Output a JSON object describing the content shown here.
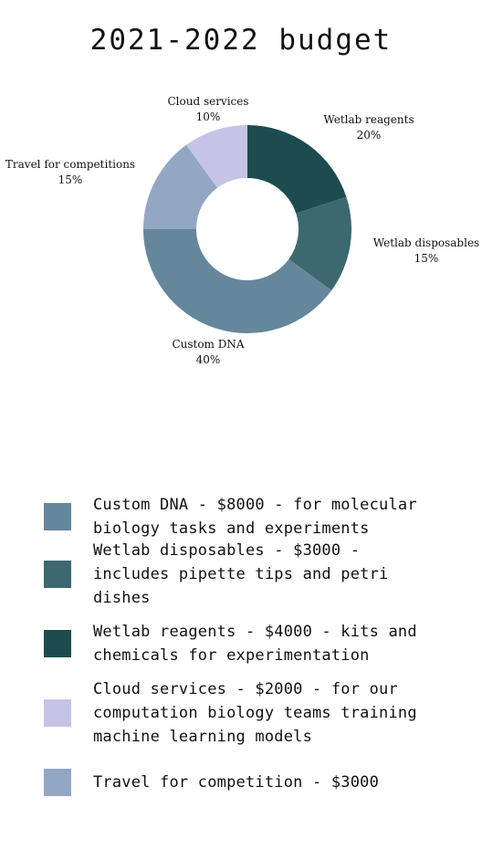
{
  "title": "2021-2022 budget",
  "chart_data": {
    "type": "pie",
    "title": "2021-2022 budget",
    "donut": true,
    "slices": [
      {
        "label": "Wetlab reagents",
        "value": 20,
        "pct_label": "20%",
        "color": "#1c4c4e"
      },
      {
        "label": "Wetlab disposables",
        "value": 15,
        "pct_label": "15%",
        "color": "#3d6870"
      },
      {
        "label": "Custom DNA",
        "value": 40,
        "pct_label": "40%",
        "color": "#65879b"
      },
      {
        "label": "Travel for competitions",
        "value": 15,
        "pct_label": "15%",
        "color": "#93a6c4"
      },
      {
        "label": "Cloud services",
        "value": 10,
        "pct_label": "10%",
        "color": "#c5c4e6"
      }
    ]
  },
  "legend": [
    {
      "text": "Custom DNA - $8000 - for molecular biology tasks and experiments",
      "color": "#65879b"
    },
    {
      "text": "Wetlab disposables - $3000 - includes pipette tips and petri dishes",
      "color": "#3d6870"
    },
    {
      "text": "Wetlab reagents - $4000 - kits and chemicals for experimentation",
      "color": "#1c4c4e"
    },
    {
      "text": "Cloud services - $2000 - for our computation biology teams training machine learning models",
      "color": "#c5c4e6"
    },
    {
      "text": "Travel for competition - $3000",
      "color": "#93a6c4"
    }
  ]
}
